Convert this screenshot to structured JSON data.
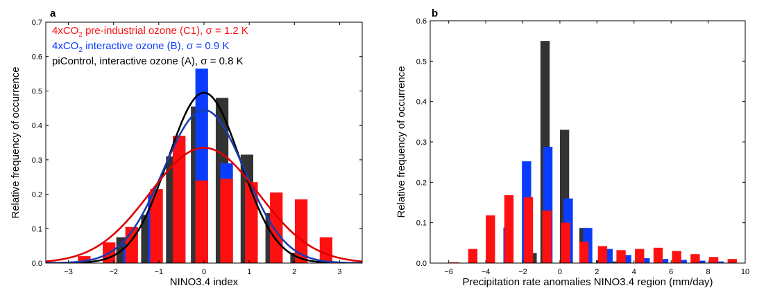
{
  "chart_data": [
    {
      "id": "a",
      "type": "bar",
      "panel_label": "a",
      "xlabel": "NINO3.4 index",
      "ylabel": "Relative frequency of occurrence",
      "xlim": [
        -3.5,
        3.5
      ],
      "ylim": [
        0,
        0.7
      ],
      "xticks": [
        -3,
        -2,
        -1,
        0,
        1,
        2,
        3
      ],
      "xtick_labels": [
        "−3",
        "−2",
        "−1",
        "0",
        "1",
        "2",
        "3"
      ],
      "yticks": [
        0,
        0.1,
        0.2,
        0.3,
        0.4,
        0.5,
        0.6,
        0.7
      ],
      "ytick_labels": [
        "0.0",
        "0.1",
        "0.2",
        "0.3",
        "0.4",
        "0.5",
        "0.6",
        "0.7"
      ],
      "legend_position": "top-left",
      "series": [
        {
          "key": "A",
          "color": "#333333",
          "legend_parts": [
            "piControl, interactive ozone (A), σ = 0.8 K"
          ],
          "legend_color": "#000000",
          "bar_width": 0.28,
          "bars": [
            {
              "x": -2.35,
              "y": 0.0
            },
            {
              "x": -1.8,
              "y": 0.075
            },
            {
              "x": -1.25,
              "y": 0.14
            },
            {
              "x": -0.7,
              "y": 0.31
            },
            {
              "x": -0.15,
              "y": 0.455
            },
            {
              "x": 0.4,
              "y": 0.48
            },
            {
              "x": 0.95,
              "y": 0.315
            },
            {
              "x": 1.5,
              "y": 0.145
            },
            {
              "x": 2.05,
              "y": 0.03
            }
          ],
          "fit": {
            "mu": 0.0,
            "sigma": 0.8,
            "peak": 0.495,
            "line_color": "#000000"
          }
        },
        {
          "key": "B",
          "color": "#0a3cff",
          "legend_parts": [
            "4xCO",
            "2",
            " interactive ozone (B), σ = 0.9 K"
          ],
          "legend_color": "#0a3cff",
          "bar_width": 0.28,
          "bars": [
            {
              "x": -2.2,
              "y": 0.0
            },
            {
              "x": -1.65,
              "y": 0.055
            },
            {
              "x": -1.1,
              "y": 0.2
            },
            {
              "x": -0.55,
              "y": 0.365
            },
            {
              "x": -0.05,
              "y": 0.565
            },
            {
              "x": 0.5,
              "y": 0.29
            },
            {
              "x": 1.05,
              "y": 0.21
            },
            {
              "x": 1.6,
              "y": 0.135
            },
            {
              "x": 2.15,
              "y": 0.04
            }
          ],
          "fit": {
            "mu": 0.0,
            "sigma": 0.9,
            "peak": 0.445,
            "line_color": "#1a3cb0"
          }
        },
        {
          "key": "C1",
          "color": "#ff1010",
          "legend_parts": [
            "4xCO",
            "2",
            " pre-industrial ozone (C1), σ = 1.2 K"
          ],
          "legend_color": "#ff1010",
          "bar_width": 0.28,
          "bars": [
            {
              "x": -2.65,
              "y": 0.02
            },
            {
              "x": -2.1,
              "y": 0.06
            },
            {
              "x": -1.6,
              "y": 0.105
            },
            {
              "x": -1.05,
              "y": 0.215
            },
            {
              "x": -0.55,
              "y": 0.37
            },
            {
              "x": -0.05,
              "y": 0.24
            },
            {
              "x": 0.5,
              "y": 0.245
            },
            {
              "x": 1.05,
              "y": 0.235
            },
            {
              "x": 1.6,
              "y": 0.205
            },
            {
              "x": 2.15,
              "y": 0.185
            },
            {
              "x": 2.7,
              "y": 0.075
            }
          ],
          "fit": {
            "mu": 0.0,
            "sigma": 1.2,
            "peak": 0.335,
            "line_color": "#e00000"
          }
        }
      ]
    },
    {
      "id": "b",
      "type": "bar",
      "panel_label": "b",
      "xlabel": "Precipitation rate anomalies NINO3.4 region (mm/day)",
      "ylabel": "Relative frequency of occurrence",
      "xlim": [
        -7,
        10
      ],
      "ylim": [
        0,
        0.6
      ],
      "xticks": [
        -6,
        -4,
        -2,
        0,
        2,
        4,
        6,
        8,
        10
      ],
      "xtick_labels": [
        "−6",
        "−4",
        "−2",
        "0",
        "2",
        "4",
        "6",
        "8",
        "10"
      ],
      "yticks": [
        0,
        0.1,
        0.2,
        0.3,
        0.4,
        0.5,
        0.6
      ],
      "ytick_labels": [
        "0.0",
        "0.1",
        "0.2",
        "0.3",
        "0.4",
        "0.5",
        "0.6"
      ],
      "series": [
        {
          "key": "A",
          "color": "#333333",
          "bar_width": 0.5,
          "bars": [
            {
              "x": -1.5,
              "y": 0.025
            },
            {
              "x": -0.8,
              "y": 0.55
            },
            {
              "x": 0.25,
              "y": 0.33
            },
            {
              "x": 1.3,
              "y": 0.087
            },
            {
              "x": 2.2,
              "y": 0.007
            },
            {
              "x": 3.1,
              "y": 0.004
            }
          ]
        },
        {
          "key": "B",
          "color": "#0a3cff",
          "bar_width": 0.5,
          "bars": [
            {
              "x": -4.1,
              "y": 0.0
            },
            {
              "x": -2.8,
              "y": 0.088
            },
            {
              "x": -1.8,
              "y": 0.252
            },
            {
              "x": -0.65,
              "y": 0.288
            },
            {
              "x": 0.45,
              "y": 0.16
            },
            {
              "x": 1.5,
              "y": 0.087
            },
            {
              "x": 2.6,
              "y": 0.035
            },
            {
              "x": 3.6,
              "y": 0.02
            },
            {
              "x": 4.6,
              "y": 0.012
            },
            {
              "x": 5.6,
              "y": 0.01
            },
            {
              "x": 6.6,
              "y": 0.008
            },
            {
              "x": 7.6,
              "y": 0.006
            },
            {
              "x": 8.6,
              "y": 0.004
            }
          ]
        },
        {
          "key": "C1",
          "color": "#ff1010",
          "bar_width": 0.5,
          "bars": [
            {
              "x": -5.7,
              "y": 0.002
            },
            {
              "x": -4.7,
              "y": 0.035
            },
            {
              "x": -3.75,
              "y": 0.118
            },
            {
              "x": -2.75,
              "y": 0.168
            },
            {
              "x": -1.7,
              "y": 0.163
            },
            {
              "x": -0.7,
              "y": 0.13
            },
            {
              "x": 0.3,
              "y": 0.1
            },
            {
              "x": 1.3,
              "y": 0.053
            },
            {
              "x": 2.3,
              "y": 0.042
            },
            {
              "x": 3.3,
              "y": 0.032
            },
            {
              "x": 4.3,
              "y": 0.035
            },
            {
              "x": 5.3,
              "y": 0.038
            },
            {
              "x": 6.3,
              "y": 0.03
            },
            {
              "x": 7.3,
              "y": 0.022
            },
            {
              "x": 8.3,
              "y": 0.015
            },
            {
              "x": 9.3,
              "y": 0.01
            }
          ]
        }
      ]
    }
  ]
}
